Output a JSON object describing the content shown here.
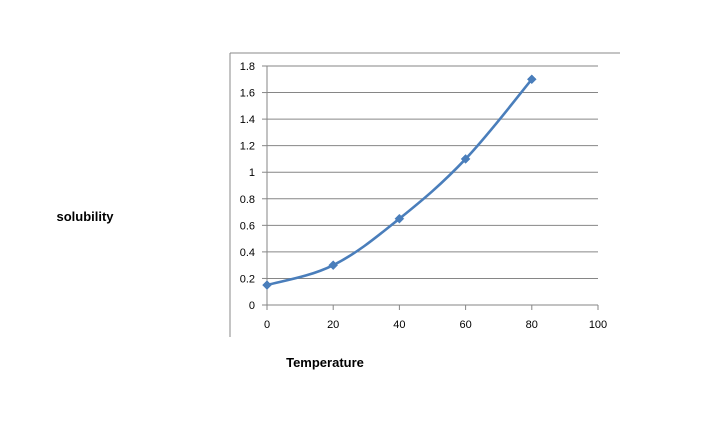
{
  "chart_data": {
    "type": "line",
    "title": "",
    "xlabel": "Temperature",
    "ylabel": "solubility",
    "x": [
      0,
      20,
      40,
      60,
      80
    ],
    "series": [
      {
        "values": [
          0.15,
          0.3,
          0.65,
          1.1,
          1.7
        ],
        "color": "#4a7ebb",
        "marker": "diamond",
        "smooth": true
      }
    ],
    "xlim": [
      0,
      100
    ],
    "ylim": [
      0,
      1.8
    ],
    "xticks": [
      "0",
      "20",
      "40",
      "60",
      "80",
      "100"
    ],
    "yticks": [
      "0",
      "0.2",
      "0.4",
      "0.6",
      "0.8",
      "1",
      "1.2",
      "1.4",
      "1.6",
      "1.8"
    ],
    "grid": "horizontal",
    "legend": "none"
  }
}
